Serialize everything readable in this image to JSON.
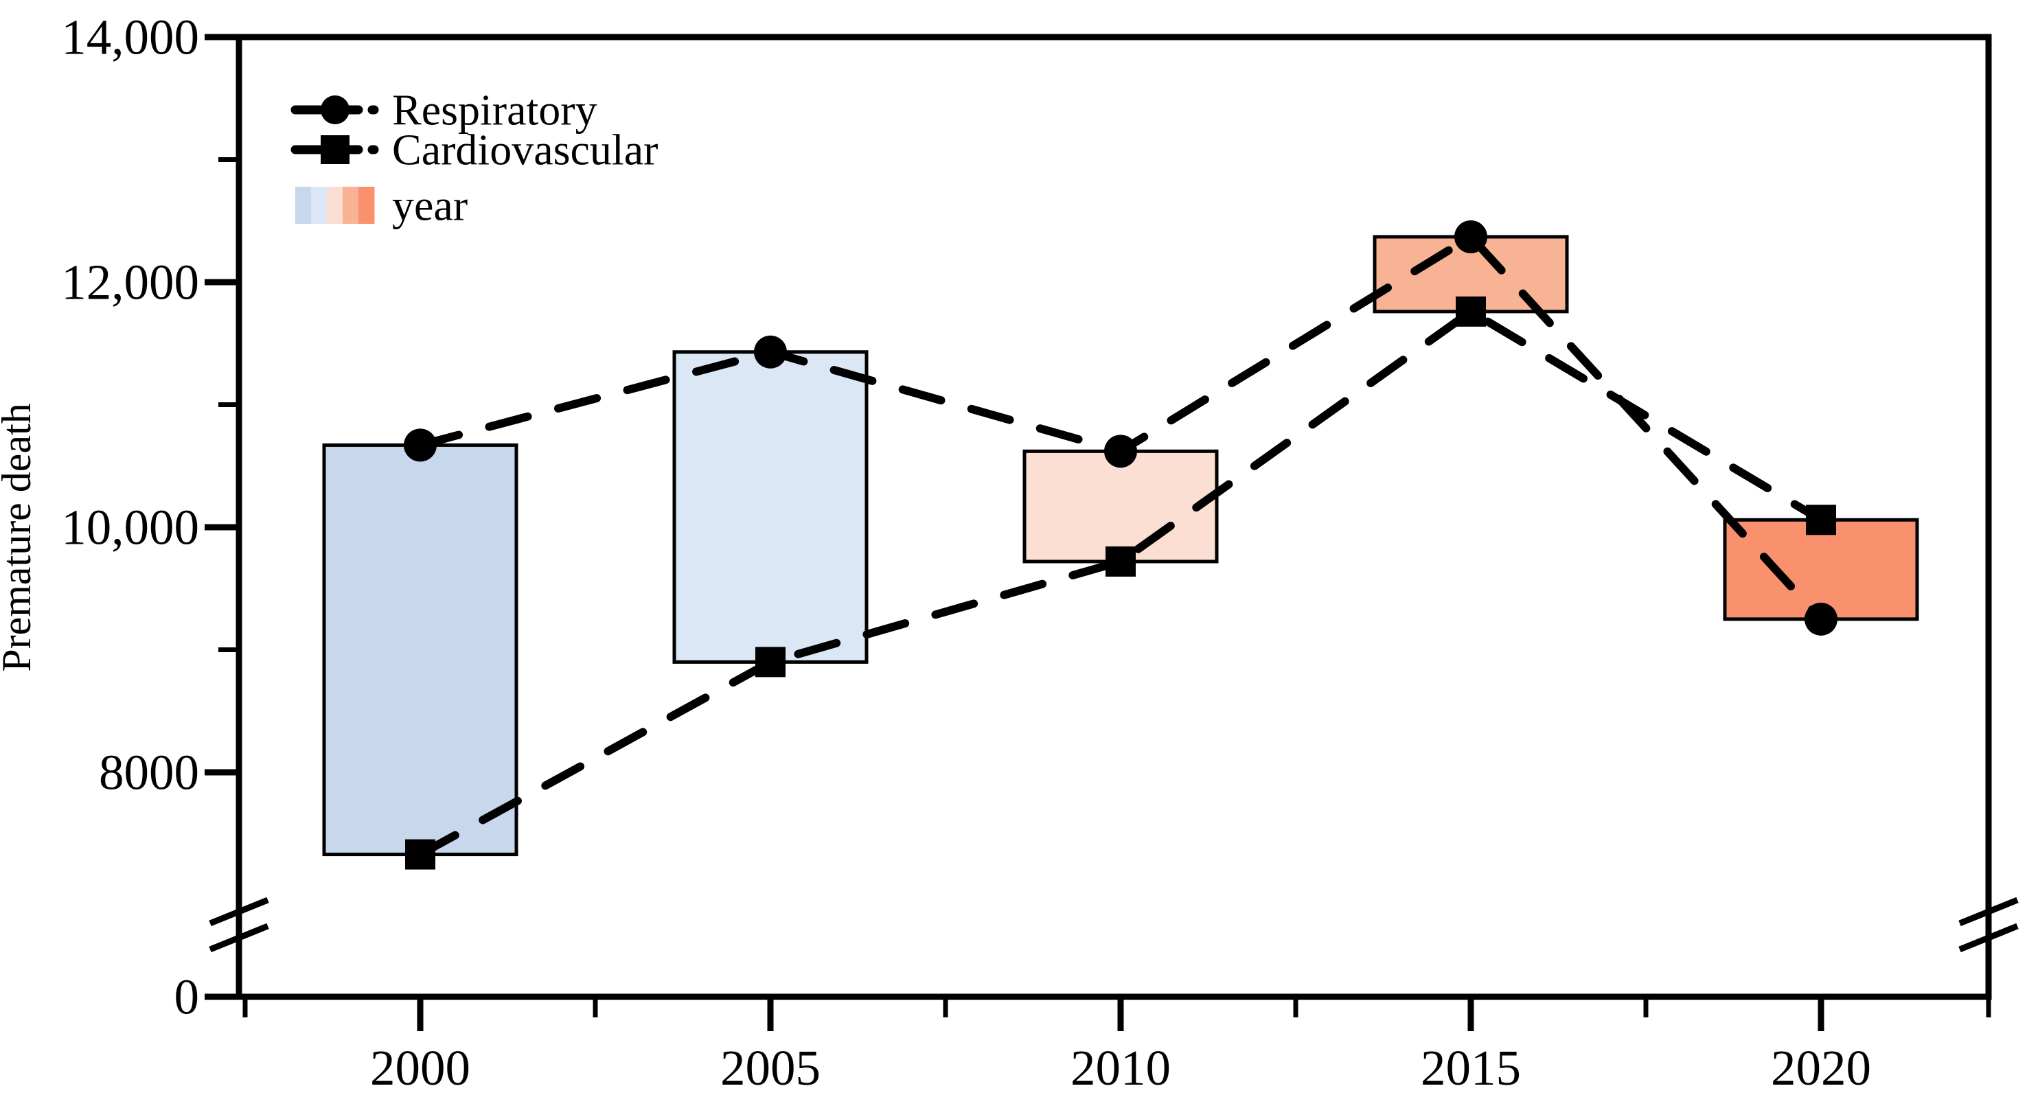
{
  "figure": {
    "title": "",
    "ylabel": "Premature death",
    "background": "#ffffff",
    "axis_color": "#000000"
  },
  "legend": {
    "items": [
      {
        "label": "Respiratory",
        "marker": "circle"
      },
      {
        "label": "Cardiovascular",
        "marker": "square"
      },
      {
        "label": "year",
        "marker": "gradient-swatch"
      }
    ]
  },
  "axes": {
    "y": {
      "label": "Premature death",
      "tick_labels": [
        "14,000",
        "12,000",
        "10,000",
        "8000",
        "0"
      ],
      "tick_values": [
        14000,
        12000,
        10000,
        8000,
        0
      ],
      "minor_tick_values": [
        13000,
        11000,
        9000
      ],
      "has_break": true
    },
    "x": {
      "tick_labels": [
        "2000",
        "2005",
        "2010",
        "2015",
        "2020"
      ],
      "tick_values": [
        2000,
        2005,
        2010,
        2015,
        2020
      ],
      "minor_tick_values": [
        1997.5,
        2002.5,
        2007.5,
        2012.5,
        2017.5,
        2022.5
      ]
    }
  },
  "chart_data": {
    "type": "line",
    "title": "",
    "xlabel": "",
    "ylabel": "Premature death",
    "x": [
      2000,
      2005,
      2010,
      2015,
      2020
    ],
    "series": [
      {
        "name": "Respiratory",
        "marker": "circle",
        "line_style": "dashed",
        "color": "#000000",
        "values": [
          10670,
          11430,
          10620,
          12370,
          9250
        ]
      },
      {
        "name": "Cardiovascular",
        "marker": "square",
        "line_style": "dashed",
        "color": "#000000",
        "values": [
          7330,
          8900,
          9720,
          11760,
          10060
        ]
      }
    ],
    "range_boxes": {
      "legend_label": "year",
      "low": [
        7330,
        8900,
        9720,
        11760,
        9250
      ],
      "high": [
        10670,
        11430,
        10620,
        12370,
        10060
      ],
      "colors": [
        "#c7d7ec",
        "#dce7f5",
        "#fbdfd2",
        "#f8b395",
        "#f9906e"
      ]
    },
    "ylim": [
      0,
      14000
    ],
    "y_axis_break_between": [
      0,
      7000
    ],
    "grid": false,
    "legend_position": "upper-left"
  }
}
